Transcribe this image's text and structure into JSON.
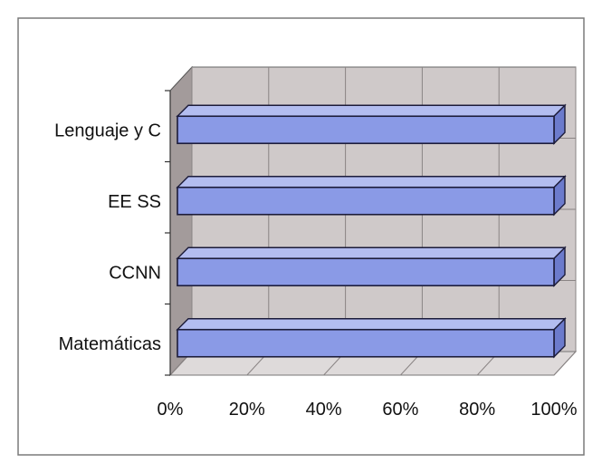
{
  "chart_data": {
    "type": "bar",
    "orientation": "horizontal",
    "three_d": true,
    "categories": [
      "Lenguaje y C",
      "EE SS",
      "CCNN",
      "Matemáticas"
    ],
    "values": [
      100,
      100,
      100,
      100
    ],
    "xlim": [
      0,
      100
    ],
    "xticks": [
      "0%",
      "20%",
      "40%",
      "60%",
      "80%",
      "100%"
    ],
    "grid": true,
    "legend": "none",
    "colors": {
      "bar_front": "#8a9ae6",
      "bar_top": "#b3bdf0",
      "bar_side": "#6c7bcc",
      "bar_outline": "#1c1c3a",
      "back_wall": "#cfc9c9",
      "side_wall": "#a39b9b",
      "floor": "#dedada",
      "gridline": "#8a8484"
    }
  }
}
